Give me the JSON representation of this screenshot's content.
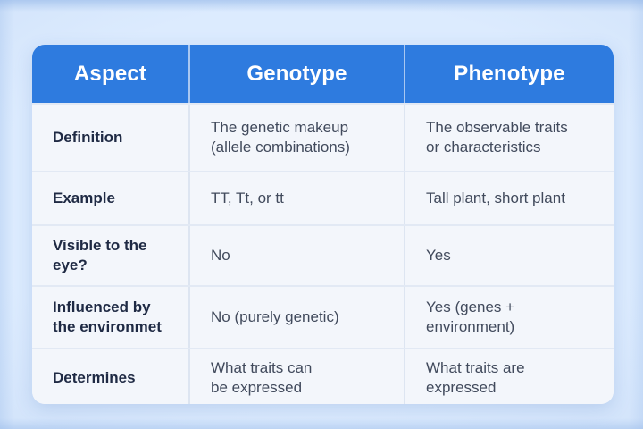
{
  "page": {
    "accent_color": "#2e7bdf",
    "background_color": "#d7e5fb",
    "card_background": "#f3f6fb",
    "header_text_color": "#ffffff",
    "label_text_color": "#1f2a44",
    "body_text_color": "#414a5c"
  },
  "table": {
    "headers": [
      "Aspect",
      "Genotype",
      "Phenotype"
    ],
    "rows": [
      {
        "aspect": "Definition",
        "genotype": "The genetic makeup\n(allele combinations)",
        "phenotype": "The observable traits\nor characteristics"
      },
      {
        "aspect": "Example",
        "genotype": "TT, Tt, or tt",
        "phenotype": "Tall plant, short plant"
      },
      {
        "aspect": "Visible to the\neye?",
        "genotype": "No",
        "phenotype": "Yes"
      },
      {
        "aspect": "Influenced by\nthe environmet",
        "genotype": "No (purely genetic)",
        "phenotype": "Yes (genes +\nenvironment)"
      },
      {
        "aspect": "Determines",
        "genotype": "What traits can\nbe expressed",
        "phenotype": "What traits are\nexpressed"
      }
    ]
  },
  "chart_data": {
    "type": "table",
    "title": "",
    "columns": [
      "Aspect",
      "Genotype",
      "Phenotype"
    ],
    "rows": [
      [
        "Definition",
        "The genetic makeup (allele combinations)",
        "The observable traits or characteristics"
      ],
      [
        "Example",
        "TT, Tt, or tt",
        "Tall plant, short plant"
      ],
      [
        "Visible to the eye?",
        "No",
        "Yes"
      ],
      [
        "Influenced by the environmet",
        "No (purely genetic)",
        "Yes (genes + environment)"
      ],
      [
        "Determines",
        "What traits can be expressed",
        "What traits are expressed"
      ]
    ],
    "layout_hints": {
      "header_fill": "#2e7bdf",
      "header_text": "white-bold-centered",
      "body_fill": "#f3f6fb",
      "grid_lines": "light",
      "corner_radius": 14
    }
  }
}
